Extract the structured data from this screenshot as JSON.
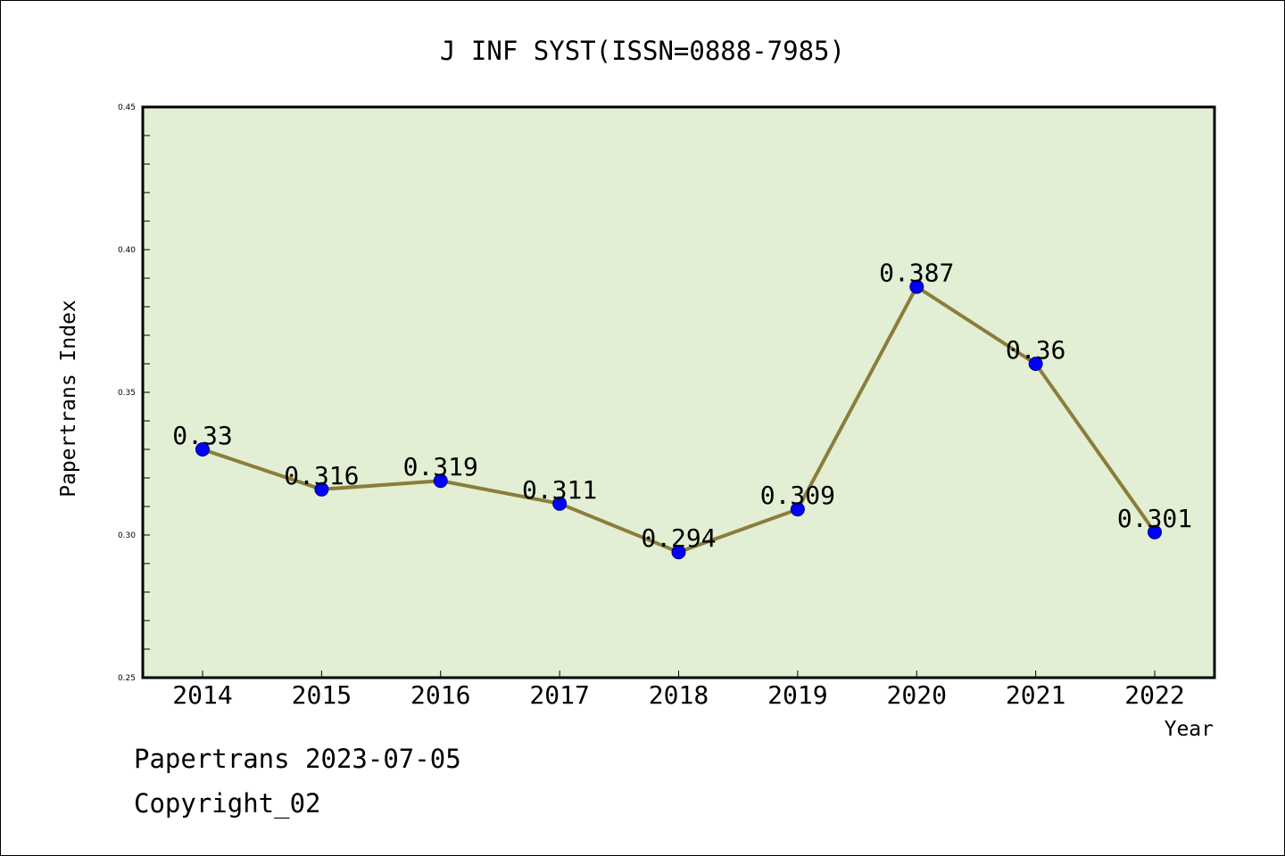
{
  "footer": {
    "line1": "Papertrans 2023-07-05",
    "line2": "Copyright_02"
  },
  "colors": {
    "plot_background": "#e2efd4",
    "line": "#8b7d3a",
    "marker": "#0000ff",
    "axis": "#000000"
  },
  "chart_data": {
    "type": "line",
    "title": "J INF SYST(ISSN=0888-7985)",
    "xlabel": "Year",
    "ylabel": "Papertrans Index",
    "categories": [
      "2014",
      "2015",
      "2016",
      "2017",
      "2018",
      "2019",
      "2020",
      "2021",
      "2022"
    ],
    "values": [
      0.33,
      0.316,
      0.319,
      0.311,
      0.294,
      0.309,
      0.387,
      0.36,
      0.301
    ],
    "data_labels": [
      "0.33",
      "0.316",
      "0.319",
      "0.311",
      "0.294",
      "0.309",
      "0.387",
      "0.36",
      "0.301"
    ],
    "ylim": [
      0.25,
      0.45
    ],
    "yticks": [
      0.25,
      0.3,
      0.35,
      0.4,
      0.45
    ],
    "ytick_labels": [
      "0.25",
      "0.30",
      "0.35",
      "0.40",
      "0.45"
    ],
    "y_minor_step": 0.01,
    "grid": false,
    "legend": "none"
  }
}
